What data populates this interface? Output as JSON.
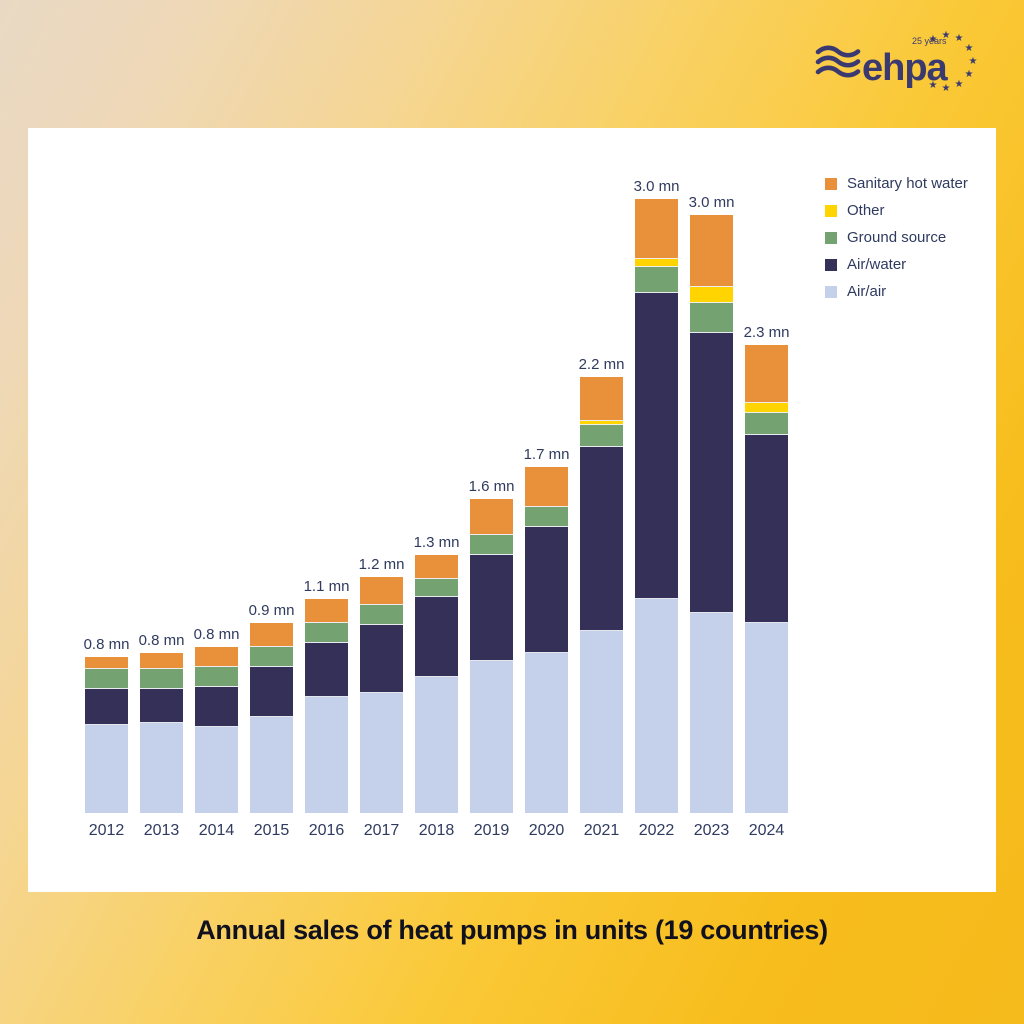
{
  "logo": {
    "brand": "ehpa",
    "badge": "25 years"
  },
  "title": "Annual sales of heat pumps in units (19 countries)",
  "colors": {
    "sanitary_hot_water": "#e8913a",
    "other": "#ffd400",
    "ground_source": "#74a371",
    "air_water": "#343057",
    "air_air": "#c5d1ea",
    "text": "#2f3a5f",
    "background_gold": "#f5ba1b",
    "background_cream": "#e9d9c4",
    "panel": "#ffffff"
  },
  "legend": [
    {
      "label": "Sanitary hot water",
      "color": "#e8913a"
    },
    {
      "label": "Other",
      "color": "#ffd400"
    },
    {
      "label": "Ground source",
      "color": "#74a371"
    },
    {
      "label": "Air/water",
      "color": "#343057"
    },
    {
      "label": "Air/air",
      "color": "#c5d1ea"
    }
  ],
  "chart_data": {
    "type": "bar",
    "stacked": true,
    "title": "Annual sales of heat pumps in units (19 countries)",
    "unit": "million units",
    "grid": false,
    "legend_position": "top-right",
    "ylim": [
      0,
      3.4
    ],
    "categories": [
      "2012",
      "2013",
      "2014",
      "2015",
      "2016",
      "2017",
      "2018",
      "2019",
      "2020",
      "2021",
      "2022",
      "2023",
      "2024"
    ],
    "total_labels": [
      "0.8 mn",
      "0.8 mn",
      "0.8 mn",
      "0.9 mn",
      "1.1 mn",
      "1.2 mn",
      "1.3 mn",
      "1.6 mn",
      "1.7 mn",
      "2.2 mn",
      "3.0 mn",
      "3.0 mn",
      "2.3 mn"
    ],
    "totals_mn": [
      0.8,
      0.8,
      0.8,
      0.9,
      1.1,
      1.2,
      1.3,
      1.6,
      1.7,
      2.2,
      3.0,
      3.0,
      2.3
    ],
    "series": [
      {
        "name": "Air/air",
        "color": "#c5d1ea",
        "values": [
          0.44,
          0.45,
          0.43,
          0.48,
          0.58,
          0.6,
          0.68,
          0.76,
          0.8,
          0.91,
          1.07,
          1.0,
          0.95
        ]
      },
      {
        "name": "Air/water",
        "color": "#343057",
        "values": [
          0.18,
          0.17,
          0.2,
          0.25,
          0.27,
          0.34,
          0.4,
          0.53,
          0.63,
          0.92,
          1.53,
          1.4,
          0.94
        ]
      },
      {
        "name": "Ground source",
        "color": "#74a371",
        "values": [
          0.1,
          0.1,
          0.1,
          0.1,
          0.1,
          0.1,
          0.09,
          0.1,
          0.1,
          0.11,
          0.13,
          0.15,
          0.11
        ]
      },
      {
        "name": "Other",
        "color": "#ffd400",
        "values": [
          0.0,
          0.0,
          0.0,
          0.0,
          0.0,
          0.0,
          0.0,
          0.0,
          0.0,
          0.02,
          0.04,
          0.08,
          0.05
        ]
      },
      {
        "name": "Sanitary hot water",
        "color": "#e8913a",
        "values": [
          0.06,
          0.08,
          0.1,
          0.12,
          0.12,
          0.14,
          0.12,
          0.18,
          0.2,
          0.22,
          0.3,
          0.36,
          0.29
        ]
      }
    ]
  }
}
